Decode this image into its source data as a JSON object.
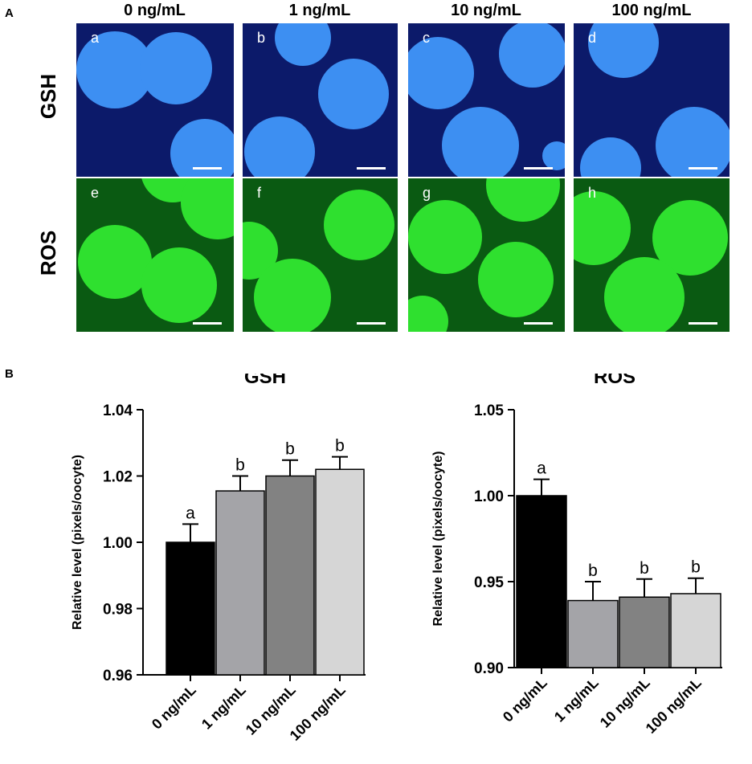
{
  "panel_a": {
    "letter": "A",
    "columns": [
      "0 ng/mL",
      "1 ng/mL",
      "10 ng/mL",
      "100 ng/mL"
    ],
    "rows": [
      "GSH",
      "ROS"
    ],
    "sublabels": [
      "a",
      "b",
      "c",
      "d",
      "e",
      "f",
      "g",
      "h"
    ],
    "colors": {
      "gsh_bg": "#0c1a6a",
      "gsh_cell": "#3d8ff2",
      "ros_bg": "#0a5a12",
      "ros_cell": "#2fe02f"
    }
  },
  "panel_b": {
    "letter": "B"
  },
  "chart_data": [
    {
      "type": "bar",
      "title": "GSH",
      "ylabel": "Relative level (pixels/oocyte)",
      "categories": [
        "0 ng/mL",
        "1 ng/mL",
        "10 ng/mL",
        "100 ng/mL"
      ],
      "values": [
        1.0,
        1.0155,
        1.02,
        1.022
      ],
      "errors": [
        0.0055,
        0.0045,
        0.0048,
        0.0038
      ],
      "significance": [
        "a",
        "b",
        "b",
        "b"
      ],
      "bar_colors": [
        "#000000",
        "#a4a4a8",
        "#828282",
        "#d6d6d6"
      ],
      "ylim": [
        0.96,
        1.04
      ],
      "yticks": [
        0.96,
        0.98,
        1.0,
        1.02,
        1.04
      ],
      "ytick_labels": [
        "0.96",
        "0.98",
        "1.00",
        "1.02",
        "1.04"
      ]
    },
    {
      "type": "bar",
      "title": "ROS",
      "ylabel": "Relative level (pixels/oocyte)",
      "categories": [
        "0 ng/mL",
        "1 ng/mL",
        "10 ng/mL",
        "100 ng/mL"
      ],
      "values": [
        1.0,
        0.939,
        0.941,
        0.943
      ],
      "errors": [
        0.0095,
        0.011,
        0.0105,
        0.009
      ],
      "significance": [
        "a",
        "b",
        "b",
        "b"
      ],
      "bar_colors": [
        "#000000",
        "#a4a4a8",
        "#828282",
        "#d6d6d6"
      ],
      "ylim": [
        0.9,
        1.05
      ],
      "yticks": [
        0.9,
        0.95,
        1.0,
        1.05
      ],
      "ytick_labels": [
        "0.90",
        "0.95",
        "1.00",
        "1.05"
      ]
    }
  ]
}
